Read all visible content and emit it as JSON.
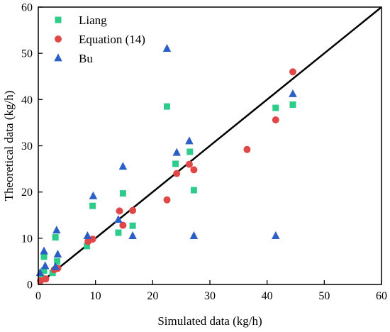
{
  "chart_data": {
    "type": "scatter",
    "title": "",
    "xlabel": "Simulated data (kg/h)",
    "ylabel": "Theoretical data (kg/h)",
    "xlim": [
      0,
      60
    ],
    "ylim": [
      0,
      60
    ],
    "xticks": [
      0,
      10,
      20,
      30,
      40,
      50,
      60
    ],
    "yticks": [
      0,
      10,
      20,
      30,
      40,
      50,
      60
    ],
    "grid": false,
    "legend_position": "top-left",
    "reference_line": {
      "from": [
        0,
        0
      ],
      "to": [
        60,
        60
      ],
      "color": "#000000"
    },
    "series": [
      {
        "name": "Liang",
        "marker": "square",
        "color": "#2ecc8a",
        "points": [
          [
            0.5,
            1.5
          ],
          [
            1.0,
            3.0
          ],
          [
            1.0,
            6.0
          ],
          [
            2.5,
            2.5
          ],
          [
            3.0,
            10.2
          ],
          [
            3.3,
            5.0
          ],
          [
            8.5,
            8.3
          ],
          [
            9.5,
            17.0
          ],
          [
            14.0,
            11.2
          ],
          [
            14.8,
            19.7
          ],
          [
            16.5,
            12.7
          ],
          [
            22.5,
            38.5
          ],
          [
            24.0,
            26.1
          ],
          [
            26.5,
            28.7
          ],
          [
            27.2,
            20.4
          ],
          [
            41.5,
            38.2
          ],
          [
            44.5,
            38.9
          ]
        ]
      },
      {
        "name": "Equation (14)",
        "marker": "circle",
        "color": "#e04848",
        "points": [
          [
            0.4,
            0.8
          ],
          [
            1.3,
            1.2
          ],
          [
            2.8,
            3.2
          ],
          [
            3.4,
            3.5
          ],
          [
            8.7,
            9.3
          ],
          [
            9.5,
            9.8
          ],
          [
            14.2,
            15.9
          ],
          [
            14.8,
            12.8
          ],
          [
            16.5,
            16.0
          ],
          [
            22.5,
            18.3
          ],
          [
            24.2,
            24.0
          ],
          [
            26.4,
            26.0
          ],
          [
            27.2,
            24.8
          ],
          [
            36.5,
            29.2
          ],
          [
            41.5,
            35.6
          ],
          [
            44.5,
            46.0
          ]
        ]
      },
      {
        "name": "Bu",
        "marker": "triangle",
        "color": "#2b5fc6",
        "points": [
          [
            0.3,
            2.5
          ],
          [
            1.0,
            7.2
          ],
          [
            1.2,
            4.0
          ],
          [
            3.0,
            3.8
          ],
          [
            3.2,
            11.7
          ],
          [
            3.4,
            6.5
          ],
          [
            8.6,
            10.5
          ],
          [
            9.6,
            19.1
          ],
          [
            14.0,
            14.0
          ],
          [
            14.8,
            25.5
          ],
          [
            16.5,
            10.5
          ],
          [
            22.5,
            51.0
          ],
          [
            24.2,
            28.5
          ],
          [
            26.4,
            31.0
          ],
          [
            27.2,
            10.5
          ],
          [
            41.5,
            10.5
          ],
          [
            44.5,
            41.2
          ]
        ]
      }
    ]
  }
}
